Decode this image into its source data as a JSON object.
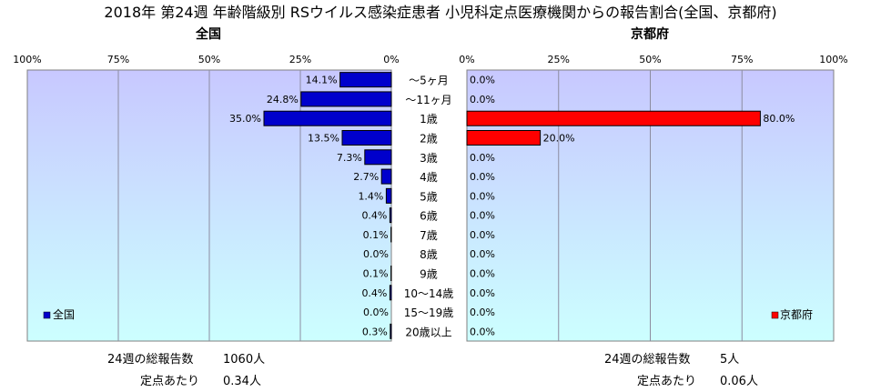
{
  "title": "2018年 第24週 年齢階級別 RSウイルス感染症患者 小児科定点医療機関からの報告割合(全国、京都府)",
  "chart_data": [
    {
      "type": "bar",
      "orientation": "horizontal",
      "direction": "right-to-left",
      "subtitle": "全国",
      "legend": "全国",
      "legend_position": "bottom-left",
      "color": "#0000CC",
      "xlim": [
        0,
        100
      ],
      "unit": "%",
      "grid": true,
      "ticks": [
        "100%",
        "75%",
        "50%",
        "25%",
        "0%"
      ],
      "tick_values": [
        100,
        75,
        50,
        25,
        0
      ],
      "values": [
        14.1,
        24.8,
        35.0,
        13.5,
        7.3,
        2.7,
        1.4,
        0.4,
        0.1,
        0.0,
        0.1,
        0.4,
        0.0,
        0.3
      ],
      "labels": [
        "14.1%",
        "24.8%",
        "35.0%",
        "13.5%",
        "7.3%",
        "2.7%",
        "1.4%",
        "0.4%",
        "0.1%",
        "0.0%",
        "0.1%",
        "0.4%",
        "0.0%",
        "0.3%"
      ]
    },
    {
      "type": "bar",
      "orientation": "horizontal",
      "direction": "left-to-right",
      "subtitle": "京都府",
      "legend": "京都府",
      "legend_position": "bottom-right",
      "color": "#FF0000",
      "xlim": [
        0,
        100
      ],
      "unit": "%",
      "grid": true,
      "ticks": [
        "0%",
        "25%",
        "50%",
        "75%",
        "100%"
      ],
      "tick_values": [
        0,
        25,
        50,
        75,
        100
      ],
      "values": [
        0.0,
        0.0,
        80.0,
        20.0,
        0.0,
        0.0,
        0.0,
        0.0,
        0.0,
        0.0,
        0.0,
        0.0,
        0.0,
        0.0
      ],
      "labels": [
        "0.0%",
        "0.0%",
        "80.0%",
        "20.0%",
        "0.0%",
        "0.0%",
        "0.0%",
        "0.0%",
        "0.0%",
        "0.0%",
        "0.0%",
        "0.0%",
        "0.0%",
        "0.0%"
      ]
    }
  ],
  "categories": [
    "～5ヶ月",
    "～11ヶ月",
    "1歳",
    "2歳",
    "3歳",
    "4歳",
    "5歳",
    "6歳",
    "7歳",
    "8歳",
    "9歳",
    "10～14歳",
    "15～19歳",
    "20歳以上"
  ],
  "footer": {
    "national": {
      "total_label": "24週の総報告数",
      "total_value": "1060人",
      "per_label": "定点あたり",
      "per_value": "0.34人"
    },
    "kyoto": {
      "total_label": "24週の総報告数",
      "total_value": "5人",
      "per_label": "定点あたり",
      "per_value": "0.06人"
    }
  },
  "colors": {
    "plot_top": "#C8C8FF",
    "plot_bottom": "#CCFFFF",
    "grid": "#8C8CA0"
  }
}
